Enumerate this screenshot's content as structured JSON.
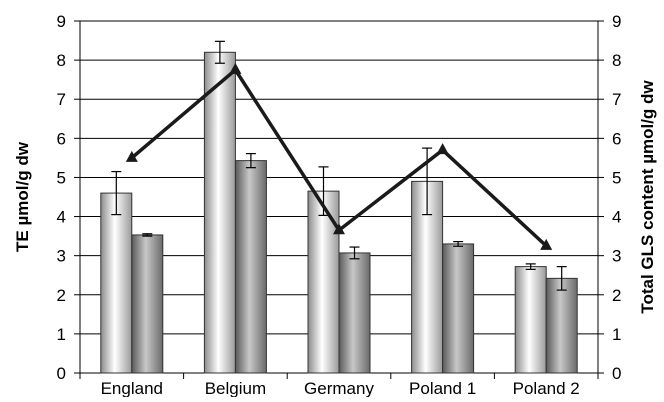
{
  "chart_data": {
    "type": "bar",
    "categories": [
      "England",
      "Belgium",
      "Germany",
      "Poland 1",
      "Poland 2"
    ],
    "ylabel": "TE µmol/g dw",
    "y2label": "Total GLS content µmol/g dw",
    "ylim": [
      0,
      9
    ],
    "y2lim": [
      0,
      9
    ],
    "yticks": [
      0,
      1,
      2,
      3,
      4,
      5,
      6,
      7,
      8,
      9
    ],
    "grid": true,
    "series": [
      {
        "kind": "bar",
        "fill": "light-gradient",
        "values": [
          4.6,
          8.2,
          4.65,
          4.9,
          2.72
        ],
        "errors": [
          0.55,
          0.28,
          0.62,
          0.85,
          0.07
        ]
      },
      {
        "kind": "bar",
        "fill": "dark-gradient",
        "values": [
          3.53,
          5.43,
          3.07,
          3.3,
          2.42
        ],
        "errors": [
          0.03,
          0.18,
          0.15,
          0.06,
          0.3
        ]
      },
      {
        "kind": "line",
        "axis": "right",
        "marker": "triangle",
        "values": [
          5.5,
          7.75,
          3.65,
          5.7,
          3.25
        ]
      }
    ],
    "colors": {
      "line": "#1a1a1a",
      "grid": "#000000",
      "bar1_light": "#ffffff",
      "bar1_dark": "#8c8c8c",
      "bar2_light": "#c8c8c8",
      "bar2_dark": "#5a5a5a"
    }
  }
}
